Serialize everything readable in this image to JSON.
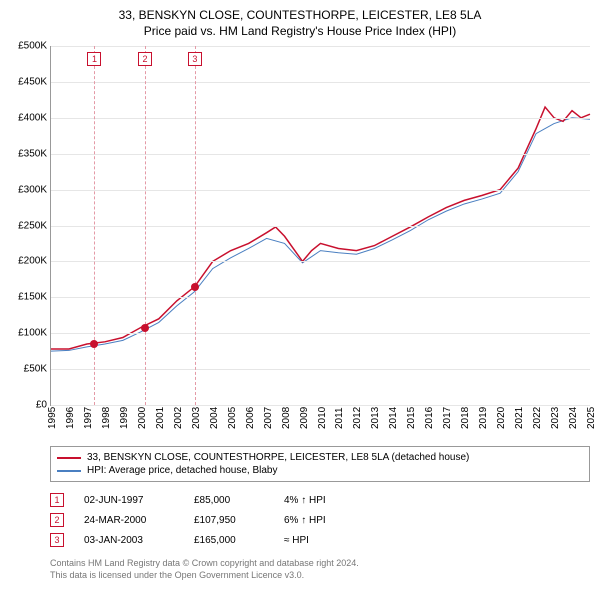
{
  "title_line1": "33, BENSKYN CLOSE, COUNTESTHORPE, LEICESTER, LE8 5LA",
  "title_line2": "Price paid vs. HM Land Registry's House Price Index (HPI)",
  "chart": {
    "type": "line",
    "x_min": 1995,
    "x_max": 2025,
    "y_min": 0,
    "y_max": 500000,
    "y_ticks": [
      0,
      50000,
      100000,
      150000,
      200000,
      250000,
      300000,
      350000,
      400000,
      450000,
      500000
    ],
    "y_tick_labels": [
      "£0",
      "£50K",
      "£100K",
      "£150K",
      "£200K",
      "£250K",
      "£300K",
      "£350K",
      "£400K",
      "£450K",
      "£500K"
    ],
    "x_ticks": [
      1995,
      1996,
      1997,
      1998,
      1999,
      2000,
      2001,
      2002,
      2003,
      2004,
      2005,
      2006,
      2007,
      2008,
      2009,
      2010,
      2011,
      2012,
      2013,
      2014,
      2015,
      2016,
      2017,
      2018,
      2019,
      2020,
      2021,
      2022,
      2023,
      2024,
      2025
    ],
    "grid_color": "#e6e6e6",
    "background_color": "#ffffff",
    "series": [
      {
        "name": "33, BENSKYN CLOSE, COUNTESTHORPE, LEICESTER, LE8 5LA (detached house)",
        "color": "#c8102e",
        "width": 1.5,
        "points": [
          [
            1995,
            78000
          ],
          [
            1996,
            78000
          ],
          [
            1997,
            85000
          ],
          [
            1998,
            88000
          ],
          [
            1999,
            94000
          ],
          [
            2000,
            107950
          ],
          [
            2001,
            120000
          ],
          [
            2002,
            145000
          ],
          [
            2003,
            165000
          ],
          [
            2004,
            200000
          ],
          [
            2005,
            215000
          ],
          [
            2006,
            225000
          ],
          [
            2007,
            240000
          ],
          [
            2007.5,
            248000
          ],
          [
            2008,
            235000
          ],
          [
            2009,
            200000
          ],
          [
            2009.5,
            215000
          ],
          [
            2010,
            225000
          ],
          [
            2011,
            218000
          ],
          [
            2012,
            215000
          ],
          [
            2013,
            222000
          ],
          [
            2014,
            235000
          ],
          [
            2015,
            248000
          ],
          [
            2016,
            262000
          ],
          [
            2017,
            275000
          ],
          [
            2018,
            285000
          ],
          [
            2019,
            292000
          ],
          [
            2020,
            300000
          ],
          [
            2021,
            330000
          ],
          [
            2022,
            385000
          ],
          [
            2022.5,
            415000
          ],
          [
            2023,
            400000
          ],
          [
            2023.5,
            395000
          ],
          [
            2024,
            410000
          ],
          [
            2024.5,
            400000
          ],
          [
            2025,
            405000
          ]
        ]
      },
      {
        "name": "HPI: Average price, detached house, Blaby",
        "color": "#4a7fc1",
        "width": 1,
        "points": [
          [
            1995,
            75000
          ],
          [
            1996,
            76000
          ],
          [
            1997,
            81000
          ],
          [
            1998,
            85000
          ],
          [
            1999,
            90000
          ],
          [
            2000,
            102000
          ],
          [
            2001,
            115000
          ],
          [
            2002,
            138000
          ],
          [
            2003,
            158000
          ],
          [
            2004,
            190000
          ],
          [
            2005,
            205000
          ],
          [
            2006,
            218000
          ],
          [
            2007,
            232000
          ],
          [
            2008,
            225000
          ],
          [
            2009,
            198000
          ],
          [
            2010,
            215000
          ],
          [
            2011,
            212000
          ],
          [
            2012,
            210000
          ],
          [
            2013,
            218000
          ],
          [
            2014,
            230000
          ],
          [
            2015,
            243000
          ],
          [
            2016,
            258000
          ],
          [
            2017,
            270000
          ],
          [
            2018,
            280000
          ],
          [
            2019,
            287000
          ],
          [
            2020,
            295000
          ],
          [
            2021,
            325000
          ],
          [
            2022,
            378000
          ],
          [
            2023,
            392000
          ],
          [
            2024,
            400000
          ],
          [
            2025,
            398000
          ]
        ]
      }
    ],
    "sale_markers": [
      {
        "n": "1",
        "x": 1997.42,
        "price": 85000,
        "color": "#c8102e"
      },
      {
        "n": "2",
        "x": 2000.23,
        "price": 107950,
        "color": "#c8102e"
      },
      {
        "n": "3",
        "x": 2003.01,
        "price": 165000,
        "color": "#c8102e"
      }
    ],
    "vline_color": "#e49aa6"
  },
  "legend": [
    {
      "color": "#c8102e",
      "label": "33, BENSKYN CLOSE, COUNTESTHORPE, LEICESTER, LE8 5LA (detached house)"
    },
    {
      "color": "#4a7fc1",
      "label": "HPI: Average price, detached house, Blaby"
    }
  ],
  "sales": [
    {
      "n": "1",
      "date": "02-JUN-1997",
      "price": "£85,000",
      "diff": "4% ↑ HPI",
      "color": "#c8102e"
    },
    {
      "n": "2",
      "date": "24-MAR-2000",
      "price": "£107,950",
      "diff": "6% ↑ HPI",
      "color": "#c8102e"
    },
    {
      "n": "3",
      "date": "03-JAN-2003",
      "price": "£165,000",
      "diff": "≈ HPI",
      "color": "#c8102e"
    }
  ],
  "footnote_line1": "Contains HM Land Registry data © Crown copyright and database right 2024.",
  "footnote_line2": "This data is licensed under the Open Government Licence v3.0."
}
